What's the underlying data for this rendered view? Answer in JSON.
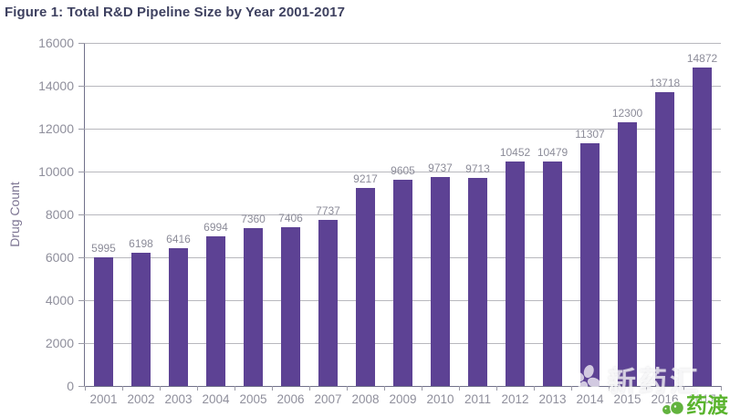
{
  "title": "Figure 1: Total R&D Pipeline Size by Year 2001-2017",
  "chart_data": {
    "type": "bar",
    "title": "Figure 1: Total R&D Pipeline Size by Year 2001-2017",
    "categories": [
      "2001",
      "2002",
      "2003",
      "2004",
      "2005",
      "2006",
      "2007",
      "2008",
      "2009",
      "2010",
      "2011",
      "2012",
      "2013",
      "2014",
      "2015",
      "2016",
      "2017"
    ],
    "values": [
      5995,
      6198,
      6416,
      6994,
      7360,
      7406,
      7737,
      9217,
      9605,
      9737,
      9713,
      10452,
      10479,
      11307,
      12300,
      13718,
      14872
    ],
    "xlabel": "",
    "ylabel": "Drug Count",
    "ylim": [
      0,
      16000
    ],
    "ytick_step": 2000,
    "grid": true,
    "legend_position": "none",
    "value_labels_shown": true,
    "bar_color": "#5d4294"
  },
  "watermarks": {
    "overlay_brand": "新药汇",
    "corner_brand": "药渡"
  },
  "colors": {
    "bar": "#5d4294",
    "title_text": "#3e4160",
    "axis_text": "#8f8f9c",
    "value_label_text": "#8c8c99",
    "grid_line": "#b8b8be",
    "axis_line": "#70708a",
    "y_axis_title_text": "#7c7492",
    "watermark_white": "#ffffff",
    "watermark_green": "#5ab42e"
  }
}
